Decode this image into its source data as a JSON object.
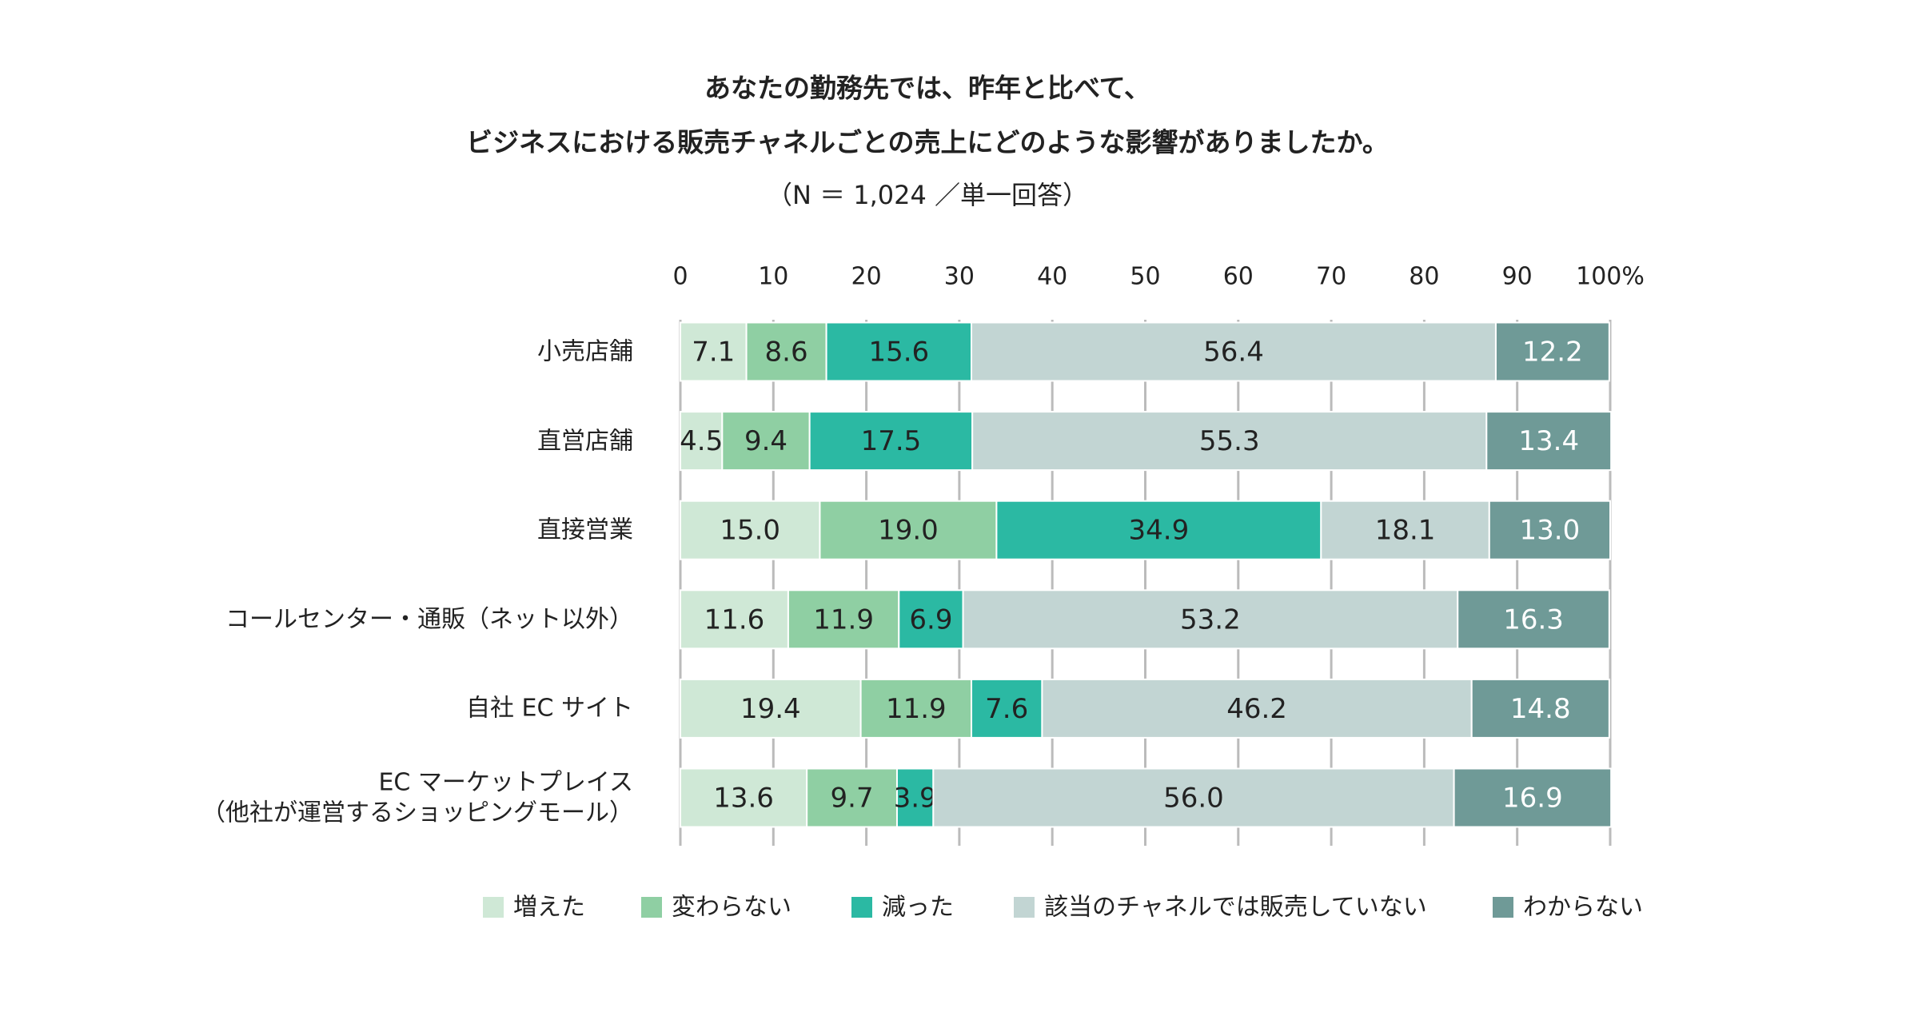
{
  "chart_data": {
    "type": "stacked_barh",
    "title": "あなたの勤務先では、昨年と比べて、",
    "title_line2": "ビジネスにおける販売チャネルごとの売上にどのような影響がありましたか。",
    "subtitle": "（N ＝ 1,024 ／単一回答）",
    "categories": [
      "小売店舗",
      "直営店舗",
      "直接営業",
      "コールセンター・通販（ネット以外）",
      "自社 EC サイト",
      "EC マーケットプレイス\n（他社が運営するショッピングモール）"
    ],
    "series": [
      {
        "name": "増えた",
        "color": "#cfe8d6",
        "values": [
          7.1,
          4.5,
          15.0,
          11.6,
          19.4,
          13.6
        ],
        "value_labels": [
          "7.1",
          "4.5",
          "15.0",
          "11.6",
          "19.4",
          "13.6"
        ]
      },
      {
        "name": "変わらない",
        "color": "#8fcfa3",
        "values": [
          8.6,
          9.4,
          19.0,
          11.9,
          11.9,
          9.7
        ],
        "value_labels": [
          "8.6",
          "9.4",
          "19.0",
          "11.9",
          "11.9",
          "9.7"
        ]
      },
      {
        "name": "減った",
        "color": "#2bb9a3",
        "values": [
          15.6,
          17.5,
          34.9,
          6.9,
          7.6,
          3.9
        ],
        "value_labels": [
          "15.6",
          "17.5",
          "34.9",
          "6.9",
          "7.6",
          "3.9"
        ]
      },
      {
        "name": "該当のチャネルでは販売していない",
        "color": "#c2d5d3",
        "values": [
          56.4,
          55.3,
          18.1,
          53.2,
          46.2,
          56.0
        ],
        "value_labels": [
          "56.4",
          "55.3",
          "18.1",
          "53.2",
          "46.2",
          "56.0"
        ]
      },
      {
        "name": "わからない",
        "color": "#6f9a97",
        "values": [
          12.2,
          13.4,
          13.0,
          16.3,
          14.8,
          16.9
        ],
        "value_labels": [
          "12.2",
          "13.4",
          "13.0",
          "16.3",
          "14.8",
          "16.9"
        ]
      }
    ],
    "xlim": [
      0,
      100
    ],
    "xticks": [
      0,
      10,
      20,
      30,
      40,
      50,
      60,
      70,
      80,
      90,
      {
        "value": 100,
        "label": "100%"
      }
    ],
    "grid": true
  }
}
